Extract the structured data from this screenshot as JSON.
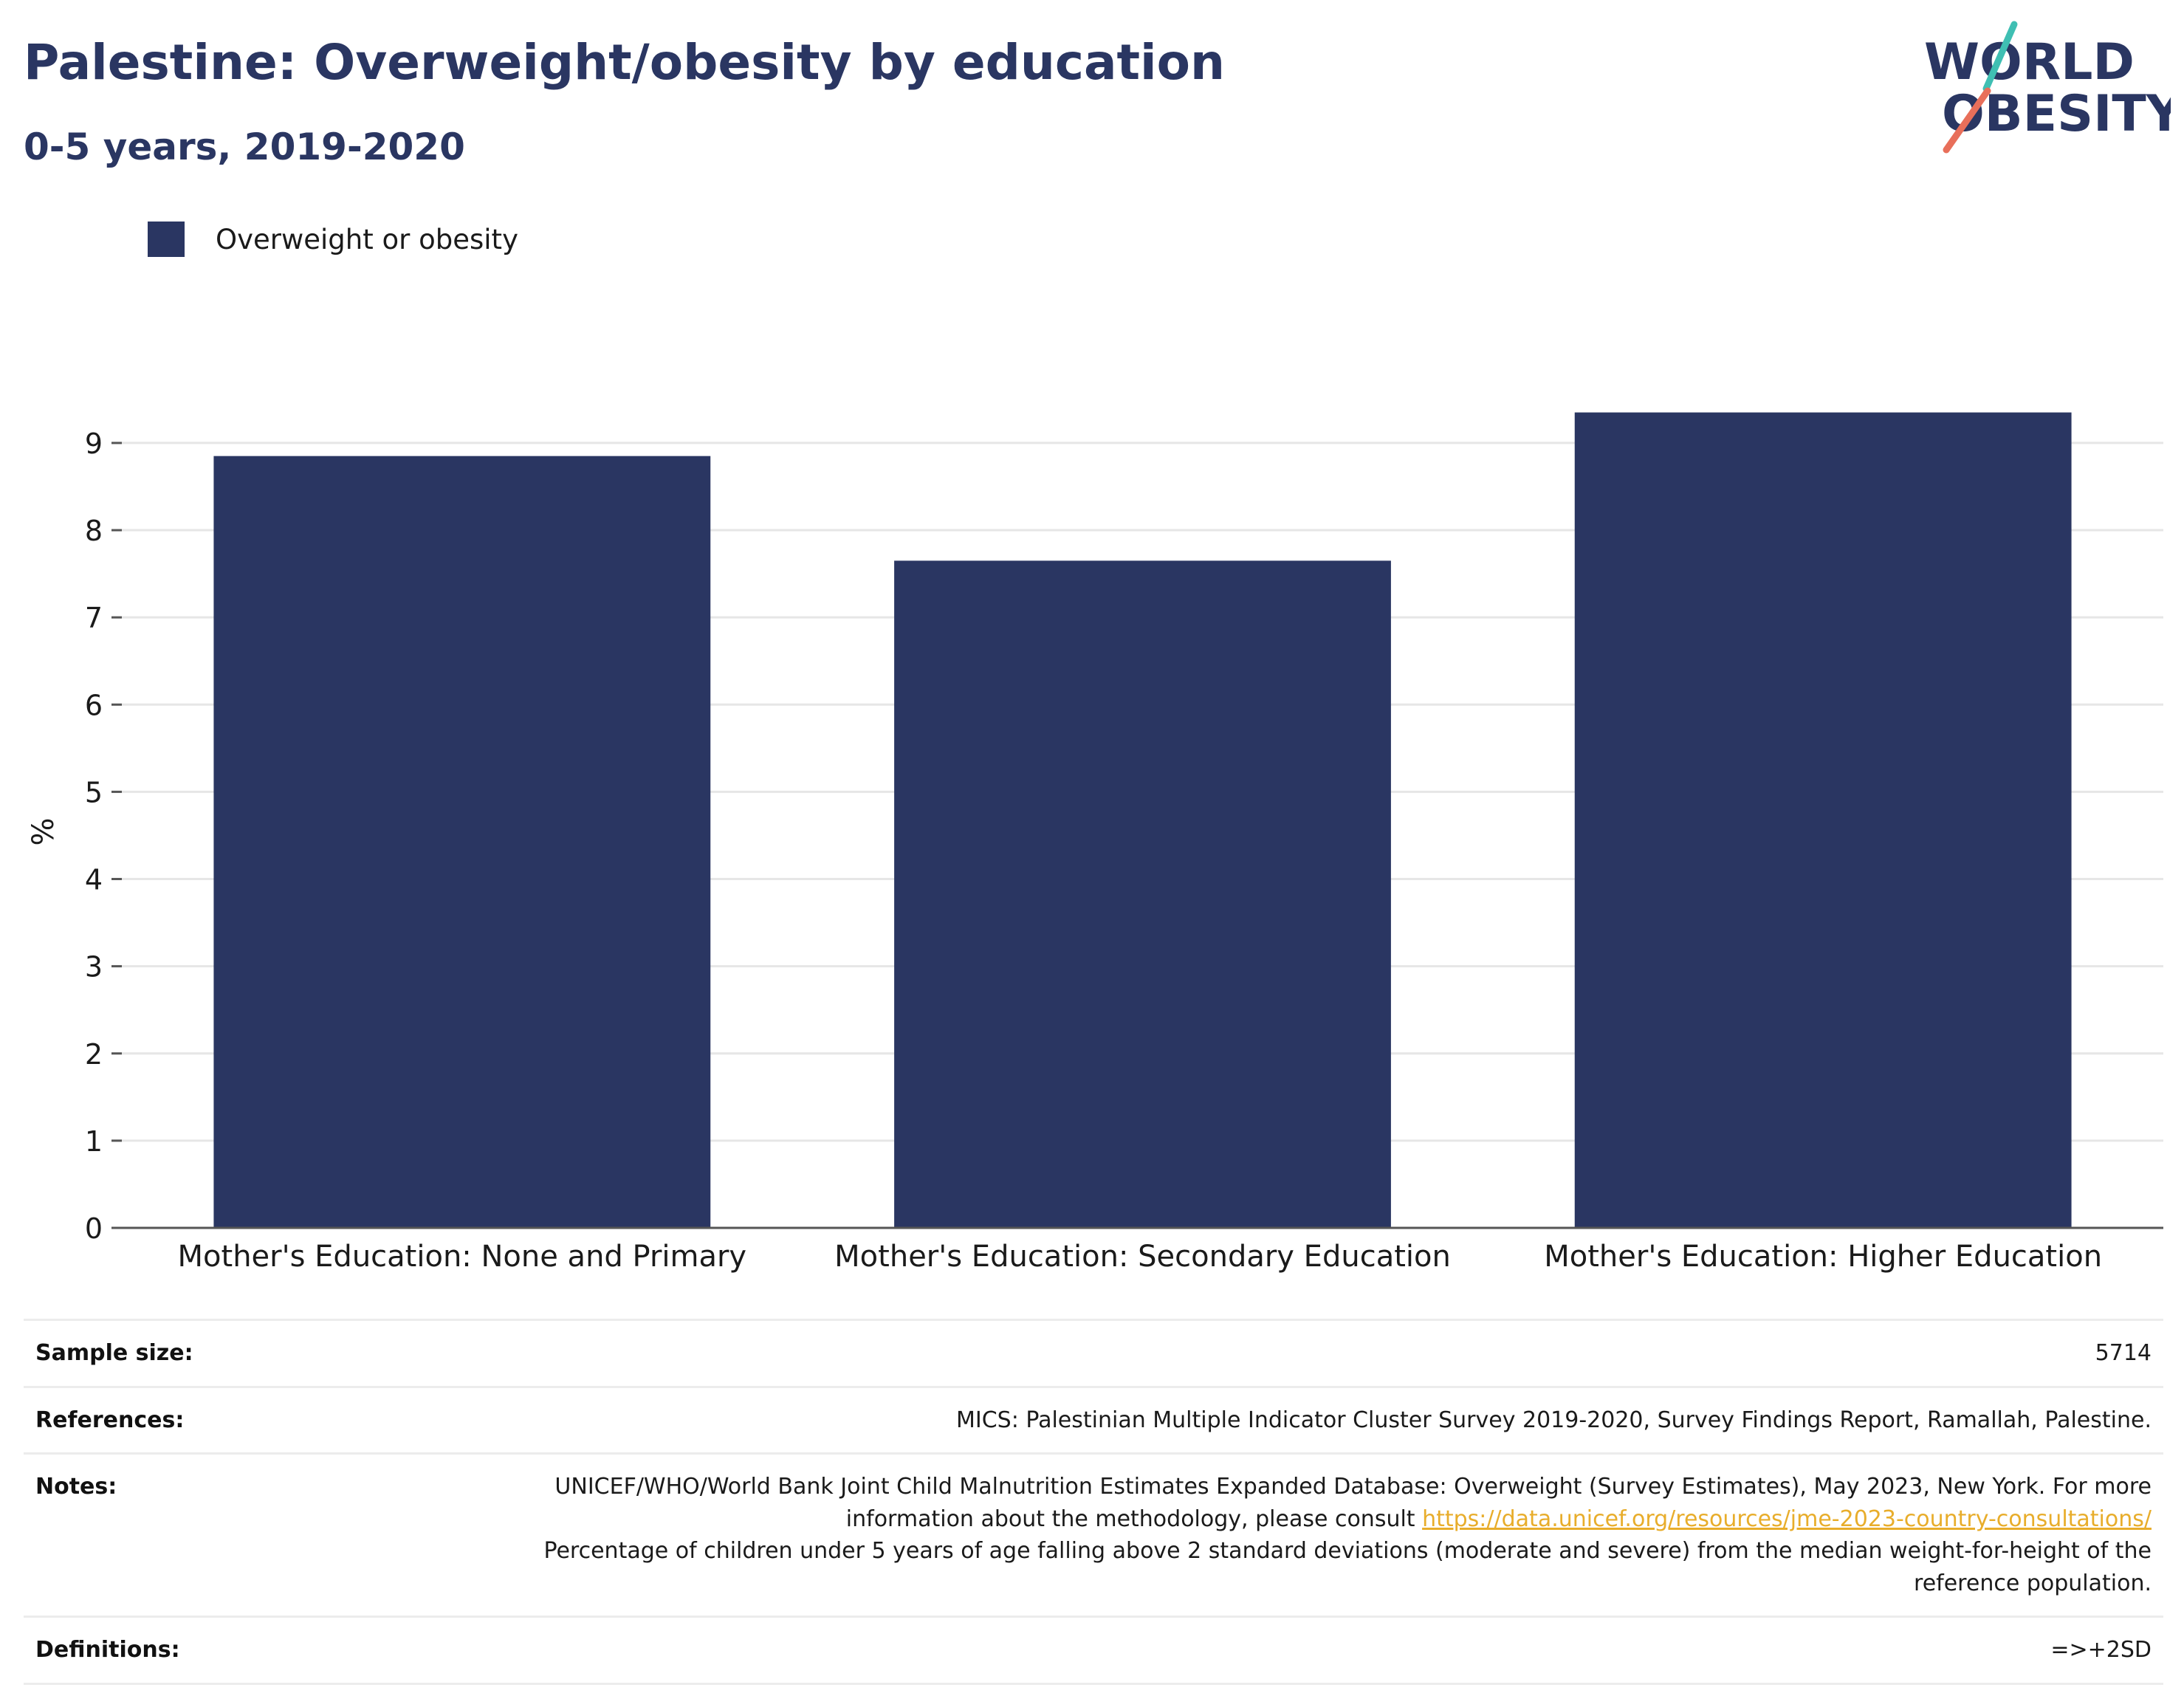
{
  "title": "Palestine: Overweight/obesity by education",
  "subtitle": "0-5 years, 2019-2020",
  "logo": {
    "line1": "WORLD",
    "line2": "OBESITY"
  },
  "colors": {
    "bar": "#2a3662",
    "title": "#2a3662",
    "link": "#e8ad2b",
    "logo_teal": "#3fbfb3",
    "logo_coral": "#e86f5a"
  },
  "chart_data": {
    "type": "bar",
    "categories": [
      "Mother's Education: None and Primary",
      "Mother's Education: Secondary Education",
      "Mother's Education: Higher Education"
    ],
    "series": [
      {
        "name": "Overweight or obesity",
        "values": [
          8.85,
          7.65,
          9.35
        ]
      }
    ],
    "ylabel": "%",
    "xlabel": "",
    "ylim": [
      0,
      10.1
    ],
    "yticks": [
      0,
      1,
      2,
      3,
      4,
      5,
      6,
      7,
      8,
      9
    ],
    "grid": true,
    "legend": "top-left"
  },
  "info": {
    "sample_size_label": "Sample size:",
    "sample_size_value": "5714",
    "references_label": "References:",
    "references_value": "MICS: Palestinian Multiple Indicator Cluster Survey 2019-2020, Survey Findings Report, Ramallah, Palestine.",
    "notes_label": "Notes:",
    "notes_text_1": "UNICEF/WHO/World Bank Joint Child Malnutrition Estimates Expanded Database: Overweight (Survey Estimates), May 2023, New York. For more information about the methodology, please consult ",
    "notes_link": "https://data.unicef.org/resources/jme-2023-country-consultations/",
    "notes_text_2": "Percentage of children under 5 years of age falling above 2 standard deviations (moderate and severe) from the median weight-for-height of the reference population.",
    "definitions_label": "Definitions:",
    "definitions_value": "=>+2SD"
  }
}
